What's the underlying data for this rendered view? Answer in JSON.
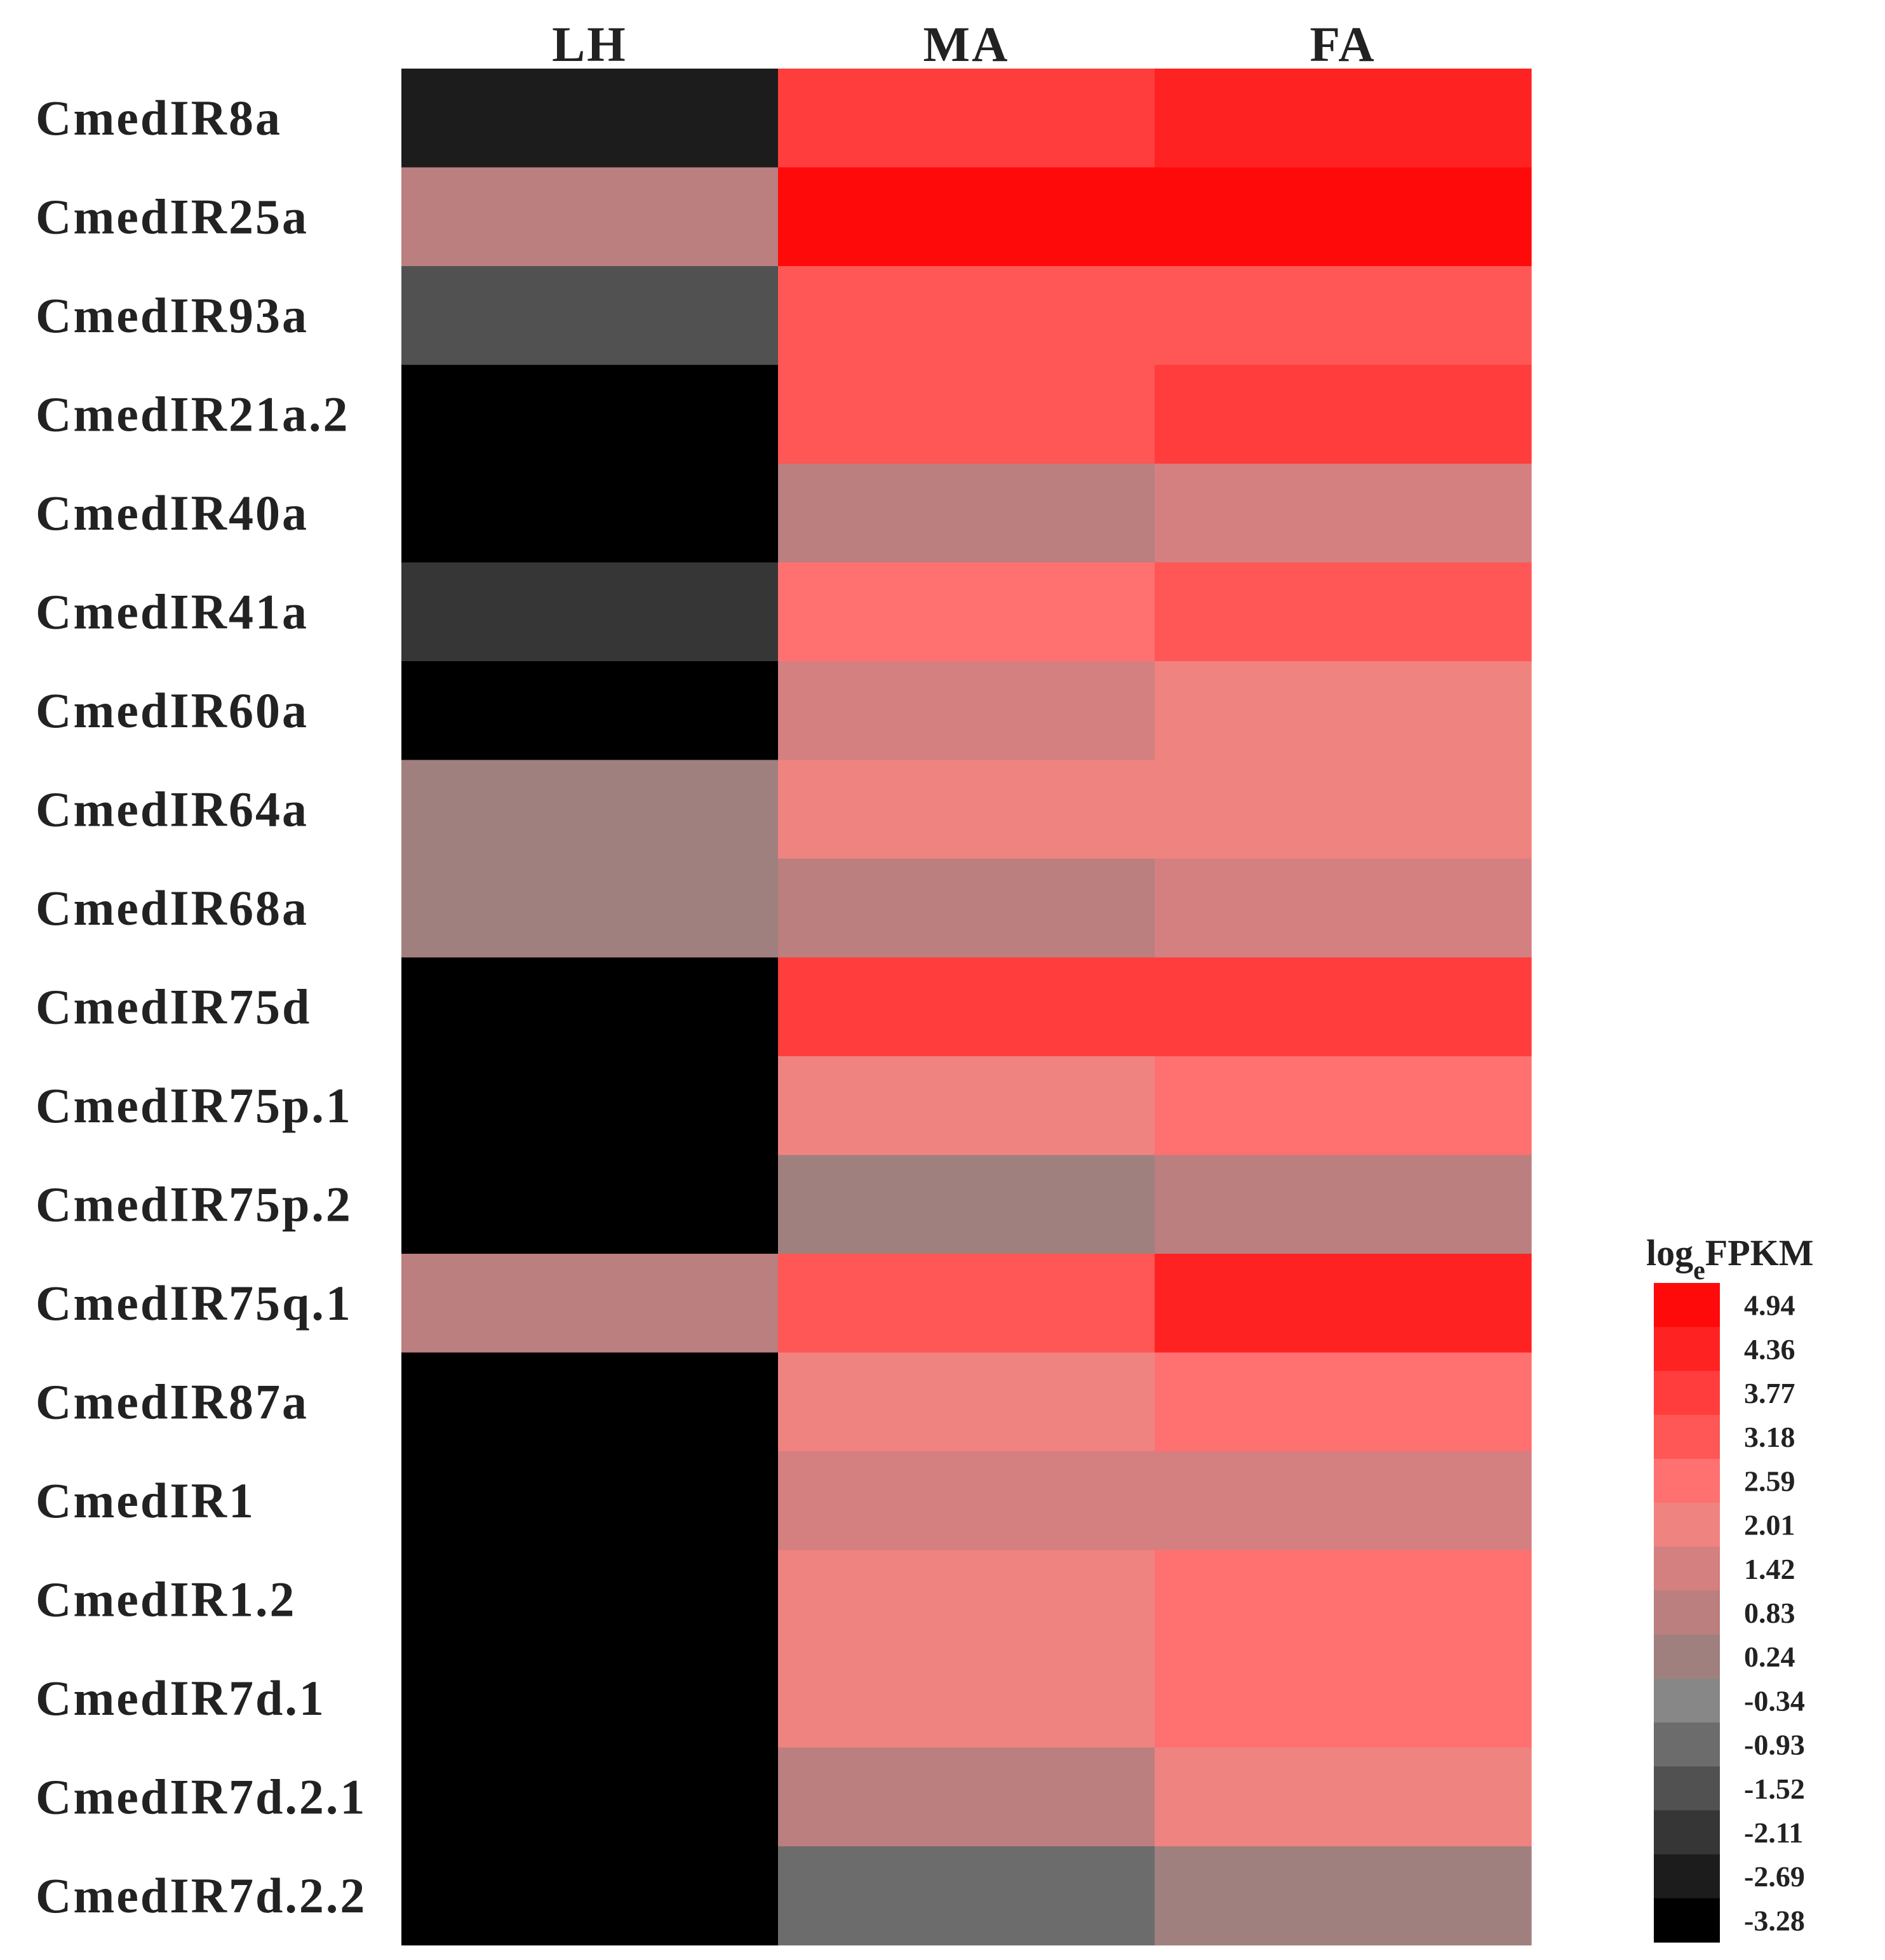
{
  "chart_data": {
    "type": "heatmap",
    "columns": [
      "LH",
      "MA",
      "FA"
    ],
    "rows": [
      "CmedIR8a",
      "CmedIR25a",
      "CmedIR93a",
      "CmedIR21a.2",
      "CmedIR40a",
      "CmedIR41a",
      "CmedIR60a",
      "CmedIR64a",
      "CmedIR68a",
      "CmedIR75d",
      "CmedIR75p.1",
      "CmedIR75p.2",
      "CmedIR75q.1",
      "CmedIR87a",
      "CmedIR1",
      "CmedIR1.2",
      "CmedIR7d.1",
      "CmedIR7d.2.1",
      "CmedIR7d.2.2"
    ],
    "values": [
      [
        -2.69,
        3.77,
        4.36
      ],
      [
        0.83,
        4.94,
        4.94
      ],
      [
        -1.52,
        3.18,
        3.18
      ],
      [
        -3.28,
        3.18,
        3.77
      ],
      [
        -3.28,
        0.83,
        1.42
      ],
      [
        -2.11,
        2.59,
        3.18
      ],
      [
        -3.28,
        1.42,
        2.01
      ],
      [
        0.24,
        2.01,
        2.01
      ],
      [
        0.24,
        0.83,
        1.42
      ],
      [
        -3.28,
        3.77,
        3.77
      ],
      [
        -3.28,
        2.01,
        2.59
      ],
      [
        -3.28,
        0.24,
        0.83
      ],
      [
        0.83,
        3.18,
        4.36
      ],
      [
        -3.28,
        2.01,
        2.59
      ],
      [
        -3.28,
        1.42,
        1.42
      ],
      [
        -3.28,
        2.01,
        2.59
      ],
      [
        -3.28,
        2.01,
        2.59
      ],
      [
        -3.28,
        0.83,
        2.01
      ],
      [
        -3.28,
        -0.93,
        0.24
      ]
    ],
    "legend": {
      "title_main": "log",
      "title_sub": "e",
      "title_rest": "FPKM",
      "ticks": [
        "4.94",
        "4.36",
        "3.77",
        "3.18",
        "2.59",
        "2.01",
        "1.42",
        "0.83",
        "0.24",
        "-0.34",
        "-0.93",
        "-1.52",
        "-2.11",
        "-2.69",
        "-3.28"
      ],
      "levels": [
        4.94,
        4.36,
        3.77,
        3.18,
        2.59,
        2.01,
        1.42,
        0.83,
        0.24,
        -0.34,
        -0.93,
        -1.52,
        -2.11,
        -2.69,
        -3.28
      ],
      "colors": [
        "#ff0a0a",
        "#ff2222",
        "#ff3d3d",
        "#ff5656",
        "#ff7070",
        "#ef8380",
        "#d47f80",
        "#ba7f7e",
        "#a0807e",
        "#878787",
        "#6c6c6c",
        "#515151",
        "#363636",
        "#1c1c1c",
        "#000000"
      ]
    }
  }
}
